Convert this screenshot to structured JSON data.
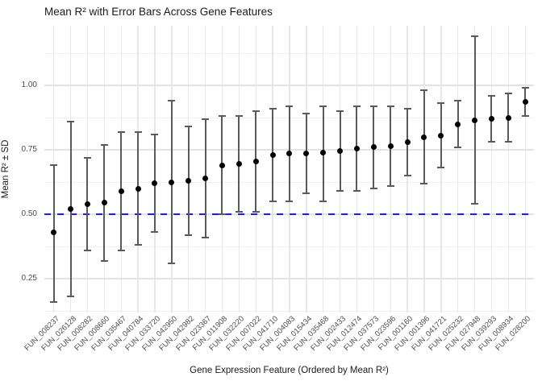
{
  "chart_data": {
    "type": "scatter",
    "subtype": "points-with-error-bars",
    "title": "Mean R² with Error Bars Across Gene Features",
    "xlabel": "Gene Expression Feature (Ordered by Mean R²)",
    "ylabel": "Mean R² ± SD",
    "y_ticks": [
      0.25,
      0.5,
      0.75,
      1.0
    ],
    "y_tick_labels": [
      "0.25",
      "0.50",
      "0.75",
      "1.00"
    ],
    "y_minor_ticks": [
      0.125,
      0.375,
      0.625,
      0.875,
      1.125
    ],
    "ylim": [
      0.13,
      1.23
    ],
    "grid": "on",
    "legend": "none",
    "reference_line": {
      "y": 0.5,
      "style": "dashed",
      "color": "#1a1aff"
    },
    "categories": [
      "FUN_008237",
      "FUN_026128",
      "FUN_008282",
      "FUN_008660",
      "FUN_035467",
      "FUN_040784",
      "FUN_033720",
      "FUN_042950",
      "FUN_042982",
      "FUN_023367",
      "FUN_011908",
      "FUN_032220",
      "FUN_007022",
      "FUN_041710",
      "FUN_004083",
      "FUN_015434",
      "FUN_035468",
      "FUN_002433",
      "FUN_012474",
      "FUN_037573",
      "FUN_023596",
      "FUN_001160",
      "FUN_001396",
      "FUN_041721",
      "FUN_025232",
      "FUN_027948",
      "FUN_039293",
      "FUN_008934",
      "FUN_028200"
    ],
    "series": [
      {
        "name": "Mean R²",
        "mean": [
          0.43,
          0.52,
          0.54,
          0.545,
          0.59,
          0.6,
          0.62,
          0.625,
          0.63,
          0.64,
          0.69,
          0.695,
          0.705,
          0.73,
          0.735,
          0.735,
          0.74,
          0.745,
          0.755,
          0.76,
          0.765,
          0.78,
          0.8,
          0.805,
          0.85,
          0.865,
          0.87,
          0.875,
          0.935
        ],
        "lower": [
          0.16,
          0.18,
          0.36,
          0.32,
          0.36,
          0.38,
          0.43,
          0.31,
          0.42,
          0.41,
          0.5,
          0.51,
          0.51,
          0.55,
          0.55,
          0.58,
          0.55,
          0.59,
          0.59,
          0.6,
          0.61,
          0.65,
          0.62,
          0.68,
          0.76,
          0.54,
          0.78,
          0.78,
          0.88
        ],
        "upper": [
          0.69,
          0.86,
          0.72,
          0.77,
          0.82,
          0.82,
          0.81,
          0.94,
          0.84,
          0.87,
          0.88,
          0.88,
          0.9,
          0.91,
          0.92,
          0.89,
          0.92,
          0.9,
          0.92,
          0.92,
          0.92,
          0.91,
          0.98,
          0.93,
          0.94,
          1.19,
          0.96,
          0.97,
          0.99
        ]
      }
    ]
  },
  "colors": {
    "point": "#000000",
    "error_bar": "#5a5a5a",
    "grid_major": "#e3e3e3",
    "grid_minor": "#f0f0f0",
    "grid_vertical": "#e7e7e7",
    "reference": "#1a1aff",
    "tick_text": "#4d4d4d",
    "title_text": "#1a1a1a",
    "background": "#ffffff"
  }
}
